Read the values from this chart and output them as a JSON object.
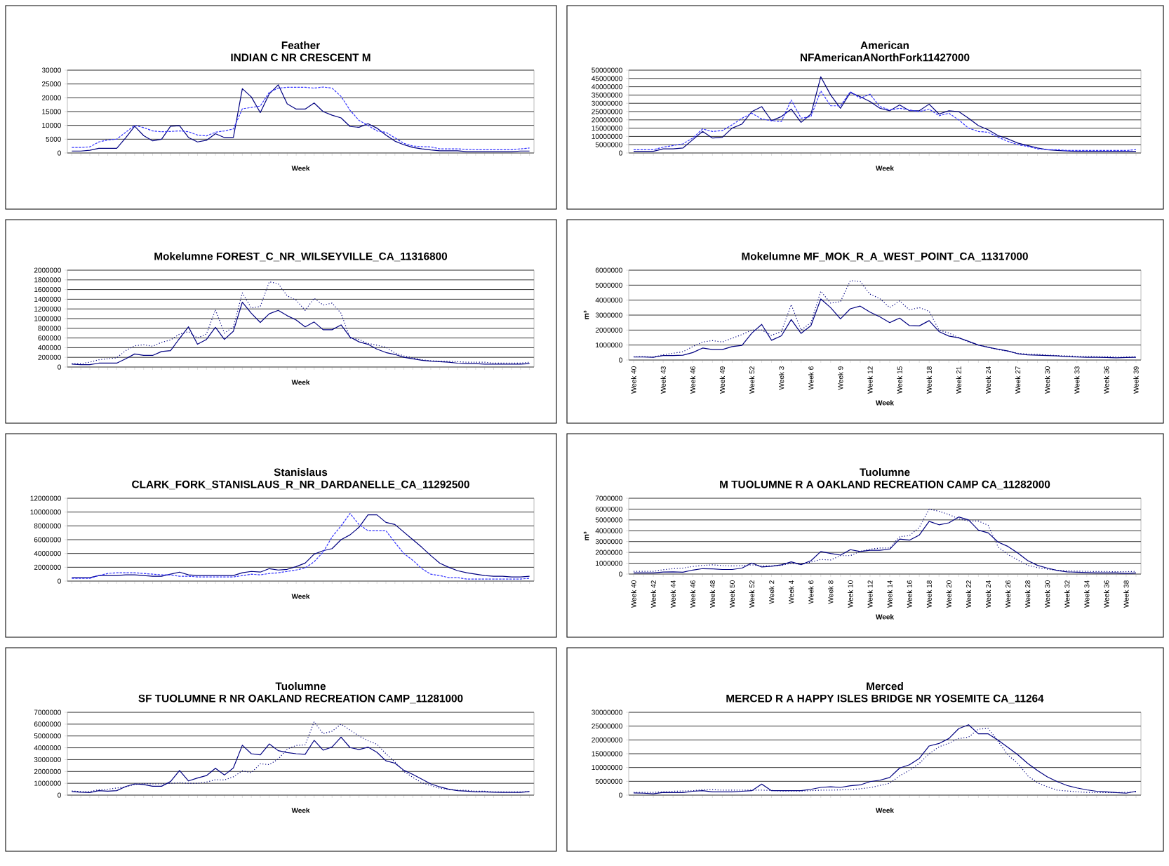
{
  "chart_data": [
    {
      "type": "line",
      "title": "Feather",
      "subtitle": "INDIAN C NR CRESCENT M",
      "xlabel": "Week",
      "grid": "y",
      "categories": [
        null,
        null,
        null,
        null,
        null,
        null,
        null,
        null,
        null,
        null,
        null,
        null,
        null,
        null,
        null,
        null,
        null,
        null,
        null,
        null,
        null,
        null,
        null,
        null,
        null,
        null,
        null,
        null,
        null,
        null,
        null,
        null,
        null,
        null,
        null,
        null,
        null,
        null,
        null,
        null,
        null,
        null,
        null,
        null,
        null,
        null,
        null,
        null,
        null,
        null,
        null,
        null
      ],
      "ylim": [
        0,
        30000
      ],
      "yticks": [
        0,
        5000,
        10000,
        15000,
        20000,
        25000,
        30000
      ],
      "series": [
        {
          "color": "#000080",
          "line_style": "solid",
          "values": [
            700,
            700,
            1000,
            1700,
            1700,
            1700,
            5500,
            9700,
            6300,
            4400,
            5000,
            9700,
            9900,
            5600,
            4000,
            4600,
            7000,
            5600,
            5600,
            23300,
            20300,
            14600,
            21400,
            24700,
            17800,
            15900,
            15900,
            18100,
            15000,
            13700,
            12700,
            9600,
            9300,
            10600,
            9000,
            6500,
            4300,
            3000,
            2000,
            1500,
            1100,
            800,
            800,
            800,
            500,
            500,
            500,
            500,
            500,
            500,
            700,
            700
          ]
        },
        {
          "color": "#3333ff",
          "line_style": "dashed",
          "values": [
            2000,
            2000,
            2200,
            4000,
            4700,
            5000,
            7500,
            10000,
            9200,
            8000,
            7700,
            7800,
            8000,
            7700,
            6500,
            6200,
            7500,
            8000,
            8700,
            16000,
            16500,
            17000,
            22000,
            23500,
            23800,
            23800,
            23800,
            23500,
            23900,
            23500,
            20500,
            15500,
            11800,
            10000,
            8000,
            7500,
            5500,
            3500,
            2500,
            2300,
            2200,
            1500,
            1500,
            1500,
            1300,
            1200,
            1200,
            1200,
            1200,
            1200,
            1500,
            1800
          ]
        }
      ]
    },
    {
      "type": "line",
      "title": "American",
      "subtitle": "NFAmericanANorthFork11427000",
      "xlabel": "Week",
      "grid": "y",
      "categories": [
        null,
        null,
        null,
        null,
        null,
        null,
        null,
        null,
        null,
        null,
        null,
        null,
        null,
        null,
        null,
        null,
        null,
        null,
        null,
        null,
        null,
        null,
        null,
        null,
        null,
        null,
        null,
        null,
        null,
        null,
        null,
        null,
        null,
        null,
        null,
        null,
        null,
        null,
        null,
        null,
        null,
        null,
        null,
        null,
        null,
        null,
        null,
        null,
        null,
        null,
        null,
        null
      ],
      "ylim": [
        0,
        50000000
      ],
      "yticks": [
        0,
        5000000,
        10000000,
        15000000,
        20000000,
        25000000,
        30000000,
        35000000,
        40000000,
        45000000,
        50000000
      ],
      "series": [
        {
          "color": "#000080",
          "line_style": "solid",
          "values": [
            1000000,
            1000000,
            1000000,
            2500000,
            2500000,
            3000000,
            8000000,
            13000000,
            9000000,
            9500000,
            15000000,
            17500000,
            25000000,
            28000000,
            19500000,
            22000000,
            26500000,
            18500000,
            23500000,
            46000000,
            35000000,
            27000000,
            36500000,
            34000000,
            31000000,
            27000000,
            25500000,
            29000000,
            25500000,
            25500000,
            29500000,
            23500000,
            25500000,
            25000000,
            21000000,
            16500000,
            14000000,
            10500000,
            8500000,
            6000000,
            4500000,
            3000000,
            2000000,
            1500000,
            1200000,
            1000000,
            1000000,
            1000000,
            1000000,
            1000000,
            1000000,
            1000000
          ]
        },
        {
          "color": "#3333ff",
          "line_style": "dashed",
          "values": [
            2000000,
            2000000,
            2000000,
            3500000,
            4500000,
            5500000,
            9000000,
            14500000,
            13000000,
            13500000,
            17000000,
            21000000,
            24000000,
            20500000,
            19500000,
            19000000,
            32000000,
            21000000,
            22000000,
            37500000,
            28500000,
            28500000,
            37000000,
            33000000,
            35500000,
            28000000,
            26000000,
            27000000,
            26000000,
            25000000,
            26500000,
            22500000,
            24000000,
            20000000,
            15000000,
            13000000,
            12500000,
            9500000,
            7000000,
            5000000,
            4000000,
            2500000,
            2000000,
            2000000,
            1500000,
            1500000,
            1500000,
            1500000,
            1500000,
            1500000,
            1500000,
            2000000
          ]
        }
      ]
    },
    {
      "type": "line",
      "title": "Mokelumne FOREST_C_NR_WILSEYVILLE_CA_11316800",
      "xlabel": "Week",
      "grid": "y",
      "categories": [
        null,
        null,
        null,
        null,
        null,
        null,
        null,
        null,
        null,
        null,
        null,
        null,
        null,
        null,
        null,
        null,
        null,
        null,
        null,
        null,
        null,
        null,
        null,
        null,
        null,
        null,
        null,
        null,
        null,
        null,
        null,
        null,
        null,
        null,
        null,
        null,
        null,
        null,
        null,
        null,
        null,
        null,
        null,
        null,
        null,
        null,
        null,
        null,
        null,
        null,
        null,
        null
      ],
      "ylim": [
        0,
        2000000
      ],
      "yticks": [
        0,
        200000,
        400000,
        600000,
        800000,
        1000000,
        1200000,
        1400000,
        1600000,
        1800000,
        2000000
      ],
      "series": [
        {
          "color": "#000080",
          "line_style": "solid",
          "values": [
            60000,
            50000,
            50000,
            80000,
            80000,
            80000,
            170000,
            270000,
            240000,
            240000,
            320000,
            340000,
            590000,
            830000,
            470000,
            570000,
            820000,
            570000,
            740000,
            1340000,
            1110000,
            920000,
            1100000,
            1170000,
            1060000,
            970000,
            830000,
            930000,
            770000,
            770000,
            870000,
            620000,
            520000,
            470000,
            370000,
            300000,
            260000,
            200000,
            170000,
            140000,
            120000,
            110000,
            100000,
            80000,
            70000,
            70000,
            60000,
            60000,
            60000,
            60000,
            60000,
            70000
          ]
        },
        {
          "color": "#000080",
          "line_style": "dotted",
          "values": [
            70000,
            70000,
            100000,
            150000,
            170000,
            190000,
            340000,
            440000,
            460000,
            430000,
            510000,
            560000,
            680000,
            730000,
            600000,
            680000,
            1180000,
            700000,
            830000,
            1530000,
            1220000,
            1250000,
            1760000,
            1720000,
            1470000,
            1380000,
            1170000,
            1420000,
            1280000,
            1320000,
            1110000,
            600000,
            570000,
            490000,
            450000,
            410000,
            290000,
            230000,
            190000,
            150000,
            130000,
            120000,
            120000,
            110000,
            100000,
            100000,
            100000,
            80000,
            80000,
            80000,
            80000,
            100000
          ]
        }
      ]
    },
    {
      "type": "line",
      "title": "Mokelumne MF_MOK_R_A_WEST_POINT_CA_11317000",
      "xlabel": "Week",
      "ylabel": "m³",
      "grid": "y",
      "categories": [
        "Week 40",
        null,
        null,
        "Week 43",
        null,
        null,
        "Week 46",
        null,
        null,
        "Week 49",
        null,
        null,
        "Week 52",
        null,
        null,
        "Week 3",
        null,
        null,
        "Week 6",
        null,
        null,
        "Week 9",
        null,
        null,
        "Week 12",
        null,
        null,
        "Week 15",
        null,
        null,
        "Week 18",
        null,
        null,
        "Week 21",
        null,
        null,
        "Week 24",
        null,
        null,
        "Week 27",
        null,
        null,
        "Week 30",
        null,
        null,
        "Week 33",
        null,
        null,
        "Week 36",
        null,
        null,
        "Week 39"
      ],
      "ylim": [
        0,
        6000000
      ],
      "yticks": [
        0,
        1000000,
        2000000,
        3000000,
        4000000,
        5000000,
        6000000
      ],
      "series": [
        {
          "color": "#000080",
          "line_style": "solid",
          "values": [
            200000,
            200000,
            180000,
            300000,
            300000,
            320000,
            500000,
            800000,
            700000,
            700000,
            900000,
            980000,
            1800000,
            2380000,
            1320000,
            1620000,
            2700000,
            1780000,
            2300000,
            4080000,
            3500000,
            2750000,
            3420000,
            3600000,
            3200000,
            2880000,
            2500000,
            2800000,
            2300000,
            2280000,
            2630000,
            1900000,
            1600000,
            1480000,
            1250000,
            1000000,
            850000,
            720000,
            600000,
            420000,
            350000,
            320000,
            300000,
            280000,
            220000,
            200000,
            180000,
            180000,
            170000,
            150000,
            170000,
            180000
          ]
        },
        {
          "color": "#000080",
          "line_style": "dotted",
          "values": [
            220000,
            230000,
            200000,
            350000,
            450000,
            550000,
            900000,
            1200000,
            1300000,
            1200000,
            1450000,
            1700000,
            2000000,
            2000000,
            1650000,
            1900000,
            3700000,
            2000000,
            2500000,
            4600000,
            3800000,
            3900000,
            5300000,
            5250000,
            4400000,
            4100000,
            3500000,
            3950000,
            3350000,
            3500000,
            3250000,
            2000000,
            1800000,
            1500000,
            1200000,
            1000000,
            850000,
            700000,
            580000,
            450000,
            400000,
            380000,
            330000,
            300000,
            280000,
            250000,
            250000,
            230000,
            220000,
            200000,
            200000,
            220000
          ]
        }
      ]
    },
    {
      "type": "line",
      "title": "Stanislaus",
      "subtitle": "CLARK_FORK_STANISLAUS_R_NR_DARDANELLE_CA_11292500",
      "xlabel": "Week",
      "grid": "y",
      "categories": [
        null,
        null,
        null,
        null,
        null,
        null,
        null,
        null,
        null,
        null,
        null,
        null,
        null,
        null,
        null,
        null,
        null,
        null,
        null,
        null,
        null,
        null,
        null,
        null,
        null,
        null,
        null,
        null,
        null,
        null,
        null,
        null,
        null,
        null,
        null,
        null,
        null,
        null,
        null,
        null,
        null,
        null,
        null,
        null,
        null,
        null,
        null,
        null,
        null,
        null,
        null,
        null
      ],
      "ylim": [
        0,
        12000000
      ],
      "yticks": [
        0,
        2000000,
        4000000,
        6000000,
        8000000,
        10000000,
        12000000
      ],
      "series": [
        {
          "color": "#000080",
          "line_style": "solid",
          "values": [
            500000,
            500000,
            500000,
            800000,
            800000,
            800000,
            900000,
            900000,
            800000,
            700000,
            700000,
            1000000,
            1300000,
            900000,
            800000,
            800000,
            800000,
            800000,
            800000,
            1200000,
            1400000,
            1300000,
            1800000,
            1600000,
            1700000,
            2100000,
            2600000,
            3900000,
            4400000,
            4700000,
            6000000,
            6700000,
            7800000,
            9600000,
            9600000,
            8500000,
            8200000,
            7100000,
            6000000,
            4900000,
            3700000,
            2600000,
            2000000,
            1500000,
            1200000,
            1000000,
            800000,
            700000,
            700000,
            600000,
            600000,
            700000
          ]
        },
        {
          "color": "#3333ff",
          "line_style": "dashed",
          "values": [
            400000,
            400000,
            400000,
            800000,
            1100000,
            1200000,
            1200000,
            1200000,
            1100000,
            1000000,
            900000,
            900000,
            700000,
            700000,
            600000,
            600000,
            600000,
            600000,
            600000,
            800000,
            1000000,
            900000,
            1100000,
            1200000,
            1400000,
            1600000,
            1900000,
            2800000,
            4200000,
            6400000,
            8000000,
            9800000,
            8200000,
            7300000,
            7300000,
            7300000,
            5600000,
            4000000,
            3000000,
            1800000,
            1000000,
            800000,
            500000,
            500000,
            300000,
            300000,
            300000,
            300000,
            300000,
            300000,
            300000,
            400000
          ]
        }
      ]
    },
    {
      "type": "line",
      "title": "Tuolumne",
      "subtitle": "M TUOLUMNE R A OAKLAND RECREATION CAMP  CA_11282000",
      "xlabel": "Week",
      "ylabel": "m³",
      "grid": "y",
      "categories": [
        "Week 40",
        null,
        "Week 42",
        null,
        "Week 44",
        null,
        "Week 46",
        null,
        "Week 48",
        null,
        "Week 50",
        null,
        "Week 52",
        null,
        "Week 2",
        null,
        "Week 4",
        null,
        "Week 6",
        null,
        "Week 8",
        null,
        "Week 10",
        null,
        "Week 12",
        null,
        "Week 14",
        null,
        "Week 16",
        null,
        "Week 18",
        null,
        "Week 20",
        null,
        "Week 22",
        null,
        "Week 24",
        null,
        "Week 26",
        null,
        "Week 28",
        null,
        "Week 30",
        null,
        "Week 32",
        null,
        "Week 34",
        null,
        "Week 36",
        null,
        "Week 38",
        null
      ],
      "ylim": [
        0,
        7000000
      ],
      "yticks": [
        0,
        1000000,
        2000000,
        3000000,
        4000000,
        5000000,
        6000000,
        7000000
      ],
      "series": [
        {
          "color": "#000080",
          "line_style": "solid",
          "values": [
            100000,
            100000,
            100000,
            180000,
            200000,
            170000,
            370000,
            500000,
            480000,
            420000,
            420000,
            550000,
            1020000,
            650000,
            720000,
            850000,
            1130000,
            870000,
            1230000,
            2080000,
            1900000,
            1750000,
            2250000,
            2080000,
            2200000,
            2200000,
            2300000,
            3230000,
            3130000,
            3600000,
            4870000,
            4550000,
            4730000,
            5270000,
            5000000,
            4060000,
            3800000,
            2950000,
            2550000,
            1950000,
            1250000,
            800000,
            550000,
            330000,
            200000,
            170000,
            140000,
            100000,
            100000,
            100000,
            60000,
            100000
          ]
        },
        {
          "color": "#000080",
          "line_style": "dotted",
          "values": [
            250000,
            250000,
            250000,
            400000,
            500000,
            550000,
            700000,
            800000,
            850000,
            780000,
            750000,
            780000,
            850000,
            750000,
            750000,
            800000,
            1000000,
            900000,
            1100000,
            1350000,
            1300000,
            1700000,
            1700000,
            2100000,
            2300000,
            2400000,
            2400000,
            3450000,
            3550000,
            4300000,
            6000000,
            5800000,
            5500000,
            5100000,
            4900000,
            4900000,
            4500000,
            2500000,
            1800000,
            1300000,
            800000,
            600000,
            450000,
            350000,
            300000,
            270000,
            250000,
            230000,
            230000,
            220000,
            220000,
            250000
          ]
        }
      ]
    },
    {
      "type": "line",
      "title": "Tuolumne",
      "subtitle": "SF TUOLUMNE R NR OAKLAND RECREATION CAMP_11281000",
      "xlabel": "Week",
      "grid": "y",
      "categories": [
        null,
        null,
        null,
        null,
        null,
        null,
        null,
        null,
        null,
        null,
        null,
        null,
        null,
        null,
        null,
        null,
        null,
        null,
        null,
        null,
        null,
        null,
        null,
        null,
        null,
        null,
        null,
        null,
        null,
        null,
        null,
        null,
        null,
        null,
        null,
        null,
        null,
        null,
        null,
        null,
        null,
        null,
        null,
        null,
        null,
        null,
        null,
        null,
        null,
        null,
        null,
        null
      ],
      "ylim": [
        0,
        7000000
      ],
      "yticks": [
        0,
        1000000,
        2000000,
        3000000,
        4000000,
        5000000,
        6000000,
        7000000
      ],
      "series": [
        {
          "color": "#000080",
          "line_style": "solid",
          "values": [
            300000,
            250000,
            220000,
            380000,
            330000,
            380000,
            730000,
            950000,
            900000,
            750000,
            750000,
            1150000,
            2080000,
            1200000,
            1450000,
            1650000,
            2270000,
            1700000,
            2300000,
            4220000,
            3500000,
            3400000,
            4330000,
            3760000,
            3600000,
            3500000,
            3450000,
            4630000,
            3800000,
            4070000,
            4900000,
            4020000,
            3850000,
            4060000,
            3620000,
            2900000,
            2700000,
            2100000,
            1750000,
            1350000,
            950000,
            700000,
            500000,
            380000,
            330000,
            280000,
            270000,
            250000,
            230000,
            230000,
            230000,
            300000
          ]
        },
        {
          "color": "#000080",
          "line_style": "dotted",
          "values": [
            350000,
            300000,
            300000,
            450000,
            500000,
            600000,
            700000,
            900000,
            980000,
            950000,
            950000,
            1000000,
            1050000,
            1000000,
            1000000,
            1100000,
            1300000,
            1280000,
            1550000,
            2050000,
            1900000,
            2650000,
            2580000,
            3050000,
            3900000,
            4200000,
            4250000,
            6200000,
            5200000,
            5400000,
            6000000,
            5500000,
            5000000,
            4600000,
            4300000,
            3500000,
            2800000,
            2000000,
            1500000,
            1050000,
            800000,
            580000,
            480000,
            420000,
            400000,
            330000,
            330000,
            280000,
            280000,
            270000,
            270000,
            300000
          ]
        }
      ]
    },
    {
      "type": "line",
      "title": "Merced",
      "subtitle": "MERCED R A HAPPY ISLES BRIDGE NR YOSEMITE CA_11264",
      "xlabel": "Week",
      "grid": "y",
      "categories": [
        null,
        null,
        null,
        null,
        null,
        null,
        null,
        null,
        null,
        null,
        null,
        null,
        null,
        null,
        null,
        null,
        null,
        null,
        null,
        null,
        null,
        null,
        null,
        null,
        null,
        null,
        null,
        null,
        null,
        null,
        null,
        null,
        null,
        null,
        null,
        null,
        null,
        null,
        null,
        null,
        null,
        null,
        null,
        null,
        null,
        null,
        null,
        null,
        null,
        null,
        null,
        null
      ],
      "ylim": [
        0,
        30000000
      ],
      "yticks": [
        0,
        5000000,
        10000000,
        15000000,
        20000000,
        25000000,
        30000000
      ],
      "series": [
        {
          "color": "#000080",
          "line_style": "solid",
          "values": [
            800000,
            700000,
            500000,
            1000000,
            900000,
            900000,
            1400000,
            1600000,
            1200000,
            1200000,
            1200000,
            1400000,
            1600000,
            4000000,
            1600000,
            1600000,
            1600000,
            1600000,
            2100000,
            2800000,
            3000000,
            2800000,
            3400000,
            3700000,
            4900000,
            5400000,
            6400000,
            9800000,
            11000000,
            13300000,
            17800000,
            18700000,
            20500000,
            24100000,
            25500000,
            22200000,
            22200000,
            19900000,
            17300000,
            14600000,
            11500000,
            8900000,
            6600000,
            4900000,
            3500000,
            2600000,
            1900000,
            1400000,
            1200000,
            900000,
            700000,
            1400000
          ]
        },
        {
          "color": "#000080",
          "line_style": "dotted",
          "values": [
            1000000,
            1000000,
            1000000,
            1200000,
            1400000,
            1500000,
            1600000,
            2000000,
            2000000,
            1800000,
            1800000,
            1800000,
            1800000,
            1800000,
            1700000,
            1500000,
            1500000,
            1500000,
            1600000,
            1800000,
            1800000,
            1900000,
            2000000,
            2300000,
            2700000,
            3500000,
            4300000,
            7000000,
            9000000,
            11500000,
            15000000,
            17500000,
            18800000,
            20500000,
            21000000,
            23900000,
            24200000,
            19500000,
            14500000,
            11500000,
            7000000,
            4500000,
            3000000,
            1800000,
            1500000,
            1200000,
            1000000,
            900000,
            900000,
            900000,
            1000000,
            1200000
          ]
        }
      ]
    }
  ]
}
